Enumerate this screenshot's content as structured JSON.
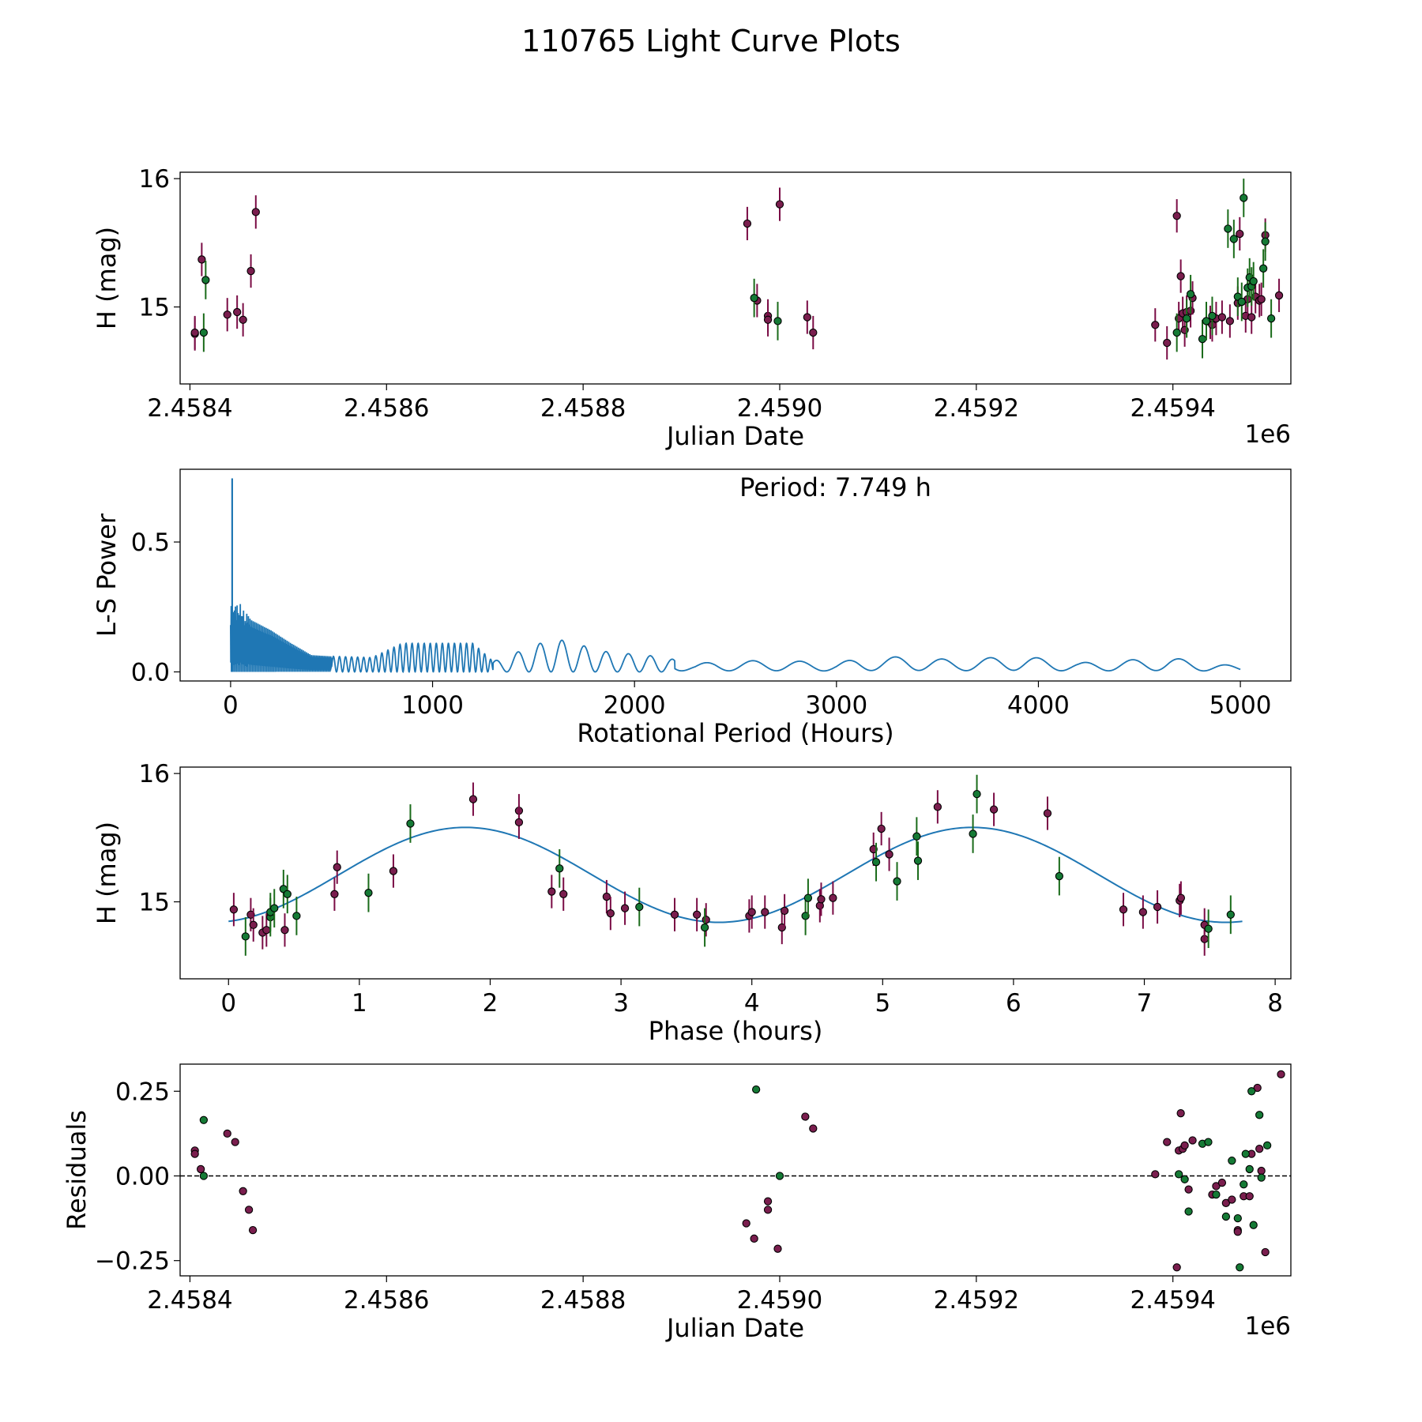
{
  "title": "110765 Light Curve Plots",
  "colors": {
    "red": "#7a1e4e",
    "green": "#157a35",
    "red_err": "#7a0c45",
    "green_err": "#1a6b1a",
    "line": "#1f77b4"
  },
  "chart_data": [
    {
      "type": "scatter",
      "name": "light-curve",
      "xlabel": "Julian Date",
      "ylabel": "H (mag)",
      "x_offset_label": "1e6",
      "xlim": [
        2.45839,
        2.45952
      ],
      "ylim": [
        14.4,
        16.05
      ],
      "xticks": [
        2.4584,
        2.4586,
        2.4588,
        2.459,
        2.4592,
        2.4594
      ],
      "xtick_labels": [
        "2.4584",
        "2.4586",
        "2.4588",
        "2.4590",
        "2.4592",
        "2.4594"
      ],
      "yticks": [
        15,
        16
      ],
      "ytick_labels": [
        "15",
        "16"
      ],
      "series": [
        {
          "name": "red",
          "err": 0.13,
          "points": [
            [
              2.458405,
              14.79
            ],
            [
              2.458405,
              14.8
            ],
            [
              2.458412,
              15.37
            ],
            [
              2.458438,
              14.94
            ],
            [
              2.458448,
              14.96
            ],
            [
              2.458454,
              14.9
            ],
            [
              2.458462,
              15.28
            ],
            [
              2.458467,
              15.74
            ],
            [
              2.458967,
              15.65
            ],
            [
              2.458977,
              15.05
            ],
            [
              2.458988,
              14.93
            ],
            [
              2.458988,
              14.9
            ],
            [
              2.459,
              15.8
            ],
            [
              2.459028,
              14.92
            ],
            [
              2.459034,
              14.8
            ],
            [
              2.459382,
              14.86
            ],
            [
              2.459394,
              14.72
            ],
            [
              2.459404,
              15.71
            ],
            [
              2.459406,
              14.91
            ],
            [
              2.459408,
              15.24
            ],
            [
              2.45941,
              14.95
            ],
            [
              2.459412,
              14.82
            ],
            [
              2.459414,
              14.96
            ],
            [
              2.459418,
              14.97
            ],
            [
              2.45942,
              15.07
            ],
            [
              2.459438,
              14.88
            ],
            [
              2.45944,
              14.86
            ],
            [
              2.459444,
              14.91
            ],
            [
              2.45945,
              14.92
            ],
            [
              2.459458,
              14.89
            ],
            [
              2.459466,
              15.03
            ],
            [
              2.459468,
              15.57
            ],
            [
              2.459474,
              14.93
            ],
            [
              2.459476,
              15.06
            ],
            [
              2.45948,
              14.92
            ],
            [
              2.459484,
              15.08
            ],
            [
              2.459488,
              15.05
            ],
            [
              2.45949,
              15.06
            ],
            [
              2.459494,
              15.56
            ],
            [
              2.459508,
              15.09
            ],
            [
              2.459524,
              15.41
            ],
            [
              2.459526,
              15.75
            ]
          ]
        },
        {
          "name": "green",
          "err": 0.15,
          "points": [
            [
              2.458414,
              14.8
            ],
            [
              2.458416,
              15.21
            ],
            [
              2.458974,
              15.07
            ],
            [
              2.458998,
              14.89
            ],
            [
              2.459404,
              14.8
            ],
            [
              2.459414,
              14.91
            ],
            [
              2.459418,
              15.1
            ],
            [
              2.45943,
              14.75
            ],
            [
              2.459434,
              14.89
            ],
            [
              2.45944,
              14.93
            ],
            [
              2.459456,
              15.61
            ],
            [
              2.459462,
              15.53
            ],
            [
              2.459466,
              15.08
            ],
            [
              2.45947,
              15.04
            ],
            [
              2.459472,
              15.85
            ],
            [
              2.459476,
              15.15
            ],
            [
              2.459478,
              15.23
            ],
            [
              2.45948,
              15.16
            ],
            [
              2.459482,
              15.2
            ],
            [
              2.459492,
              15.3
            ],
            [
              2.459494,
              15.51
            ],
            [
              2.4595,
              14.91
            ]
          ]
        }
      ]
    },
    {
      "type": "line",
      "name": "periodogram",
      "xlabel": "Rotational Period (Hours)",
      "ylabel": "L-S Power",
      "annotation": "Period: 7.749 h",
      "xlim": [
        -250,
        5250
      ],
      "ylim": [
        -0.035,
        0.78
      ],
      "xticks": [
        0,
        1000,
        2000,
        3000,
        4000,
        5000
      ],
      "xtick_labels": [
        "0",
        "1000",
        "2000",
        "3000",
        "4000",
        "5000"
      ],
      "yticks": [
        0,
        0.5
      ],
      "ytick_labels": [
        "0.0",
        "0.5"
      ],
      "x_range": [
        0,
        5000
      ],
      "peak": {
        "x": 7.749,
        "y": 0.745
      },
      "envelope": [
        [
          0,
          0.3
        ],
        [
          50,
          0.26
        ],
        [
          100,
          0.2
        ],
        [
          200,
          0.16
        ],
        [
          300,
          0.11
        ],
        [
          400,
          0.065
        ],
        [
          500,
          0.06
        ],
        [
          700,
          0.055
        ],
        [
          850,
          0.11
        ],
        [
          1000,
          0.11
        ],
        [
          1200,
          0.11
        ],
        [
          1300,
          0.04
        ],
        [
          1500,
          0.1
        ],
        [
          1600,
          0.13
        ],
        [
          1750,
          0.1
        ],
        [
          1900,
          0.07
        ],
        [
          2000,
          0.07
        ],
        [
          2150,
          0.055
        ],
        [
          2300,
          0.03
        ],
        [
          2400,
          0.04
        ],
        [
          2700,
          0.045
        ],
        [
          3000,
          0.035
        ],
        [
          3100,
          0.05
        ],
        [
          3350,
          0.06
        ],
        [
          3600,
          0.045
        ],
        [
          3900,
          0.063
        ],
        [
          4200,
          0.035
        ],
        [
          4650,
          0.055
        ],
        [
          5000,
          0.02
        ]
      ]
    },
    {
      "type": "scatter",
      "name": "phased-curve",
      "xlabel": "Phase (hours)",
      "ylabel": "H (mag)",
      "xlim": [
        -0.37,
        8.12
      ],
      "ylim": [
        14.4,
        16.05
      ],
      "xticks": [
        0,
        1,
        2,
        3,
        4,
        5,
        6,
        7,
        8
      ],
      "xtick_labels": [
        "0",
        "1",
        "2",
        "3",
        "4",
        "5",
        "6",
        "7",
        "8"
      ],
      "yticks": [
        15,
        16
      ],
      "ytick_labels": [
        "15",
        "16"
      ],
      "model": {
        "type": "sine",
        "mean": 15.21,
        "amplitude": 0.37,
        "period": 3.8745,
        "peak_phase": 1.81,
        "x_range": [
          0,
          7.749
        ]
      },
      "series": [
        {
          "name": "red",
          "err": 0.13,
          "points": [
            [
              0.04,
              14.94
            ],
            [
              0.17,
              14.9
            ],
            [
              0.19,
              14.82
            ],
            [
              0.26,
              14.76
            ],
            [
              0.29,
              14.78
            ],
            [
              0.43,
              14.78
            ],
            [
              0.81,
              15.06
            ],
            [
              0.83,
              15.27
            ],
            [
              1.26,
              15.24
            ],
            [
              1.87,
              15.8
            ],
            [
              2.22,
              15.71
            ],
            [
              2.22,
              15.62
            ],
            [
              2.47,
              15.08
            ],
            [
              2.56,
              15.06
            ],
            [
              2.89,
              15.04
            ],
            [
              2.92,
              14.91
            ],
            [
              3.03,
              14.95
            ],
            [
              3.41,
              14.9
            ],
            [
              3.58,
              14.9
            ],
            [
              3.65,
              14.86
            ],
            [
              3.98,
              14.89
            ],
            [
              4.0,
              14.92
            ],
            [
              4.1,
              14.92
            ],
            [
              4.23,
              14.8
            ],
            [
              4.25,
              14.93
            ],
            [
              4.52,
              14.97
            ],
            [
              4.53,
              15.02
            ],
            [
              4.62,
              15.03
            ],
            [
              4.93,
              15.41
            ],
            [
              4.99,
              15.57
            ],
            [
              5.05,
              15.37
            ],
            [
              5.42,
              15.74
            ],
            [
              5.85,
              15.72
            ],
            [
              6.26,
              15.69
            ],
            [
              6.84,
              14.94
            ],
            [
              6.99,
              14.92
            ],
            [
              7.1,
              14.96
            ],
            [
              7.27,
              15.01
            ],
            [
              7.28,
              15.03
            ],
            [
              7.46,
              14.71
            ],
            [
              7.46,
              14.82
            ]
          ]
        },
        {
          "name": "green",
          "err": 0.15,
          "points": [
            [
              0.13,
              14.73
            ],
            [
              0.32,
              14.88
            ],
            [
              0.32,
              14.92
            ],
            [
              0.35,
              14.95
            ],
            [
              0.42,
              15.1
            ],
            [
              0.45,
              15.06
            ],
            [
              0.52,
              14.89
            ],
            [
              1.07,
              15.07
            ],
            [
              1.39,
              15.61
            ],
            [
              2.53,
              15.26
            ],
            [
              3.14,
              14.96
            ],
            [
              3.64,
              14.8
            ],
            [
              4.41,
              14.89
            ],
            [
              4.43,
              15.03
            ],
            [
              4.95,
              15.31
            ],
            [
              5.11,
              15.16
            ],
            [
              5.26,
              15.51
            ],
            [
              5.27,
              15.32
            ],
            [
              5.69,
              15.53
            ],
            [
              5.72,
              15.84
            ],
            [
              6.35,
              15.2
            ],
            [
              7.49,
              14.79
            ],
            [
              7.66,
              14.9
            ]
          ]
        }
      ]
    },
    {
      "type": "scatter",
      "name": "residuals",
      "xlabel": "Julian Date",
      "ylabel": "Residuals",
      "x_offset_label": "1e6",
      "xlim": [
        2.45839,
        2.45952
      ],
      "ylim": [
        -0.295,
        0.33
      ],
      "xticks": [
        2.4584,
        2.4586,
        2.4588,
        2.459,
        2.4592,
        2.4594
      ],
      "xtick_labels": [
        "2.4584",
        "2.4586",
        "2.4588",
        "2.4590",
        "2.4592",
        "2.4594"
      ],
      "yticks": [
        -0.25,
        0,
        0.25
      ],
      "ytick_labels": [
        "−0.25",
        "0.00",
        "0.25"
      ],
      "reference_line": 0,
      "series": [
        {
          "name": "red",
          "points": [
            [
              2.458405,
              0.075
            ],
            [
              2.458405,
              0.065
            ],
            [
              2.458411,
              0.02
            ],
            [
              2.458438,
              0.125
            ],
            [
              2.458446,
              0.1
            ],
            [
              2.458454,
              -0.045
            ],
            [
              2.45846,
              -0.1
            ],
            [
              2.458464,
              -0.16
            ],
            [
              2.458966,
              -0.14
            ],
            [
              2.458974,
              -0.185
            ],
            [
              2.458988,
              -0.075
            ],
            [
              2.458988,
              -0.1
            ],
            [
              2.458998,
              -0.215
            ],
            [
              2.459026,
              0.175
            ],
            [
              2.459034,
              0.14
            ],
            [
              2.459382,
              0.005
            ],
            [
              2.459394,
              0.1
            ],
            [
              2.459404,
              -0.27
            ],
            [
              2.459406,
              0.075
            ],
            [
              2.459408,
              0.185
            ],
            [
              2.45941,
              0.08
            ],
            [
              2.459412,
              0.09
            ],
            [
              2.459416,
              -0.04
            ],
            [
              2.45942,
              0.105
            ],
            [
              2.45944,
              -0.055
            ],
            [
              2.459444,
              -0.03
            ],
            [
              2.45945,
              -0.02
            ],
            [
              2.459454,
              -0.08
            ],
            [
              2.45946,
              -0.07
            ],
            [
              2.459466,
              -0.16
            ],
            [
              2.459466,
              -0.165
            ],
            [
              2.459472,
              -0.06
            ],
            [
              2.459478,
              -0.06
            ],
            [
              2.45948,
              0.065
            ],
            [
              2.459486,
              0.26
            ],
            [
              2.459488,
              0.08
            ],
            [
              2.45949,
              0.015
            ],
            [
              2.459494,
              -0.225
            ],
            [
              2.45951,
              0.3
            ],
            [
              2.459524,
              -0.1
            ],
            [
              2.459526,
              -0.195
            ]
          ]
        },
        {
          "name": "green",
          "points": [
            [
              2.458414,
              0.165
            ],
            [
              2.458414,
              0.0
            ],
            [
              2.458976,
              0.255
            ],
            [
              2.459,
              0.0
            ],
            [
              2.459406,
              0.005
            ],
            [
              2.459412,
              -0.01
            ],
            [
              2.459416,
              -0.105
            ],
            [
              2.45943,
              0.095
            ],
            [
              2.459436,
              0.1
            ],
            [
              2.459444,
              -0.055
            ],
            [
              2.459454,
              -0.12
            ],
            [
              2.45946,
              0.045
            ],
            [
              2.459466,
              -0.125
            ],
            [
              2.459468,
              -0.27
            ],
            [
              2.459472,
              -0.025
            ],
            [
              2.459474,
              0.065
            ],
            [
              2.459478,
              0.02
            ],
            [
              2.45948,
              0.25
            ],
            [
              2.459482,
              -0.145
            ],
            [
              2.459488,
              0.18
            ],
            [
              2.45949,
              -0.005
            ],
            [
              2.459496,
              0.09
            ]
          ]
        }
      ]
    }
  ]
}
